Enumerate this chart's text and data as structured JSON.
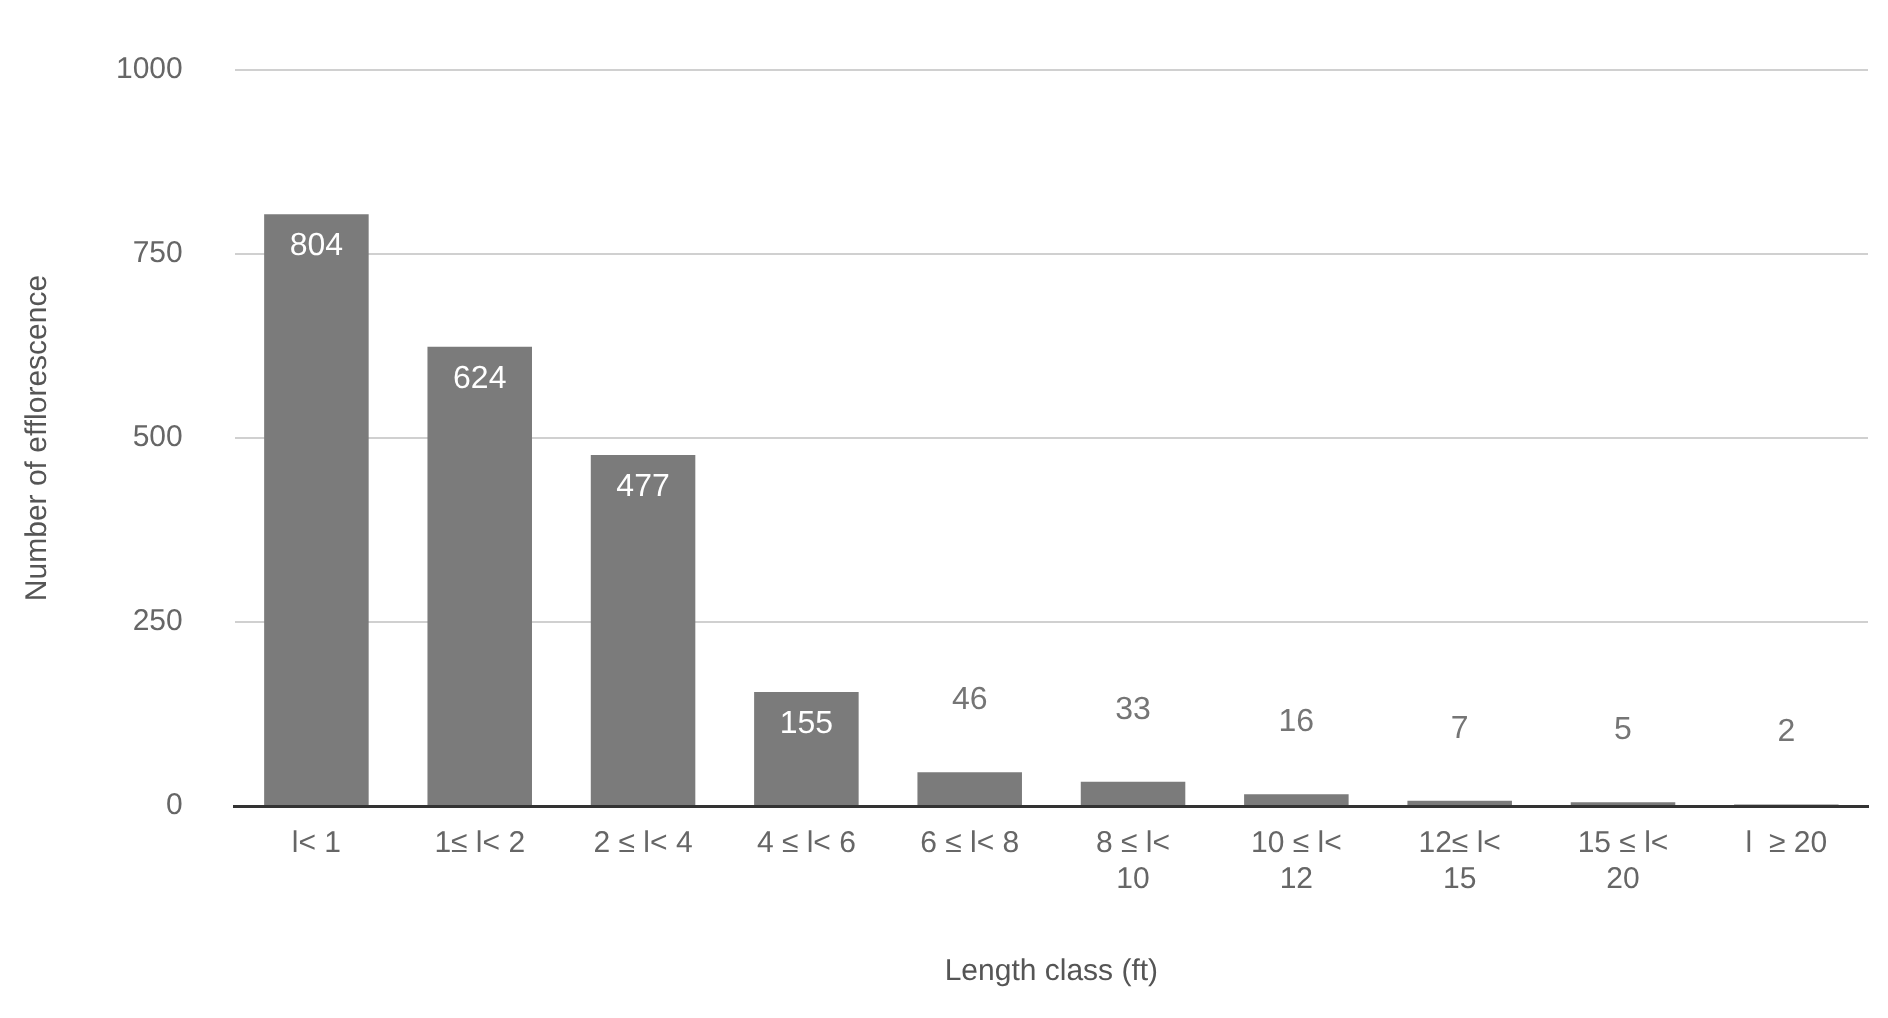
{
  "chart_data": {
    "type": "bar",
    "xlabel": "Length class (ft)",
    "ylabel": "Number of efflorescence",
    "categories": [
      "l< 1",
      "1≤ l< 2",
      "2 ≤ l< 4",
      "4 ≤ l< 6",
      "6 ≤ l< 8",
      "8 ≤ l< 10",
      "10 ≤ l< 12",
      "12≤ l< 15",
      "15 ≤ l< 20",
      "l  ≥ 20"
    ],
    "values": [
      804,
      624,
      477,
      155,
      46,
      33,
      16,
      7,
      5,
      2
    ],
    "color": "#7b7b7b",
    "ylim": [
      0,
      1000
    ],
    "yticks": [
      0,
      250,
      500,
      750,
      1000
    ],
    "grid": "y",
    "data_labels": true,
    "legend": false
  }
}
